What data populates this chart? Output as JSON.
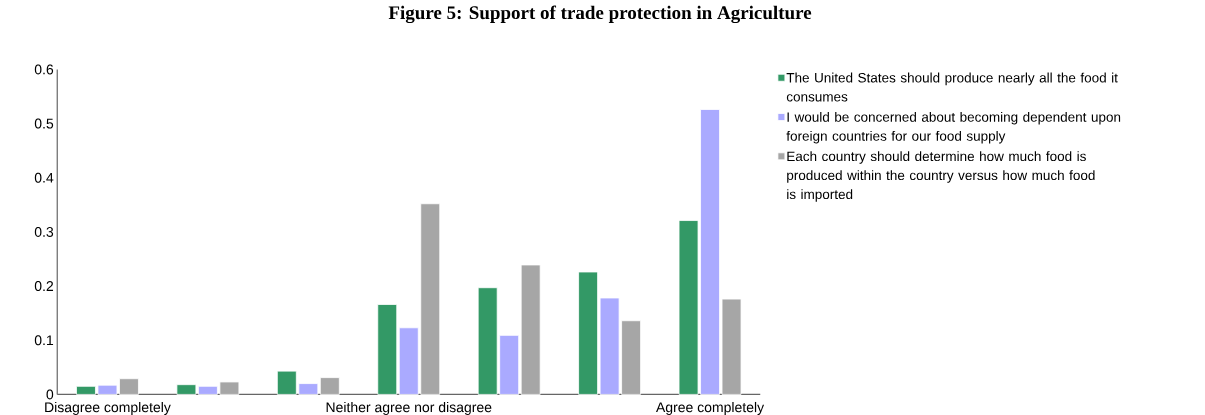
{
  "chart_data": {
    "type": "bar",
    "title": "Figure 5: Support of trade protection in Agriculture",
    "categories": [
      "Disagree completely",
      null,
      null,
      "Neither agree nor disagree",
      null,
      null,
      "Agree completely"
    ],
    "series": [
      {
        "name": "The United States should produce nearly all the food it consumes",
        "color": "#339966",
        "values": [
          0.015,
          0.018,
          0.043,
          0.166,
          0.197,
          0.226,
          0.321
        ]
      },
      {
        "name": "I would be concerned about becoming dependent upon foreign countries for our food supply",
        "color": "#aaaaff",
        "values": [
          0.017,
          0.015,
          0.02,
          0.123,
          0.109,
          0.178,
          0.526
        ]
      },
      {
        "name": "Each country should determine how much food is produced within the country versus how much food is imported",
        "color": "#a6a6a6",
        "values": [
          0.029,
          0.023,
          0.031,
          0.352,
          0.239,
          0.136,
          0.176
        ]
      }
    ],
    "ylim": [
      0,
      0.6
    ],
    "yticks": [
      0,
      0.1,
      0.2,
      0.3,
      0.4,
      0.5,
      0.6
    ],
    "grid": false,
    "legend": "right"
  }
}
